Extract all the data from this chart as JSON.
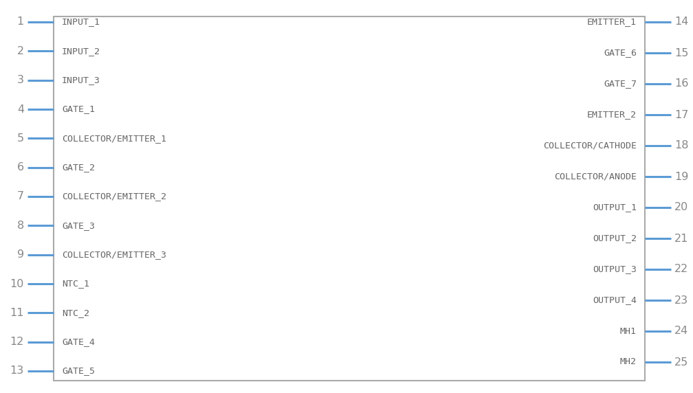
{
  "bg_color": "#ffffff",
  "box_color": "#aaaaaa",
  "pin_line_color": "#5b9bd5",
  "text_color": "#666666",
  "pin_num_color": "#888888",
  "left_pins": [
    {
      "num": 1,
      "label": "INPUT_1"
    },
    {
      "num": 2,
      "label": "INPUT_2"
    },
    {
      "num": 3,
      "label": "INPUT_3"
    },
    {
      "num": 4,
      "label": "GATE_1"
    },
    {
      "num": 5,
      "label": "COLLECTOR/EMITTER_1"
    },
    {
      "num": 6,
      "label": "GATE_2"
    },
    {
      "num": 7,
      "label": "COLLECTOR/EMITTER_2"
    },
    {
      "num": 8,
      "label": "GATE_3"
    },
    {
      "num": 9,
      "label": "COLLECTOR/EMITTER_3"
    },
    {
      "num": 10,
      "label": "NTC_1"
    },
    {
      "num": 11,
      "label": "NTC_2"
    },
    {
      "num": 12,
      "label": "GATE_4"
    },
    {
      "num": 13,
      "label": "GATE_5"
    }
  ],
  "right_pins": [
    {
      "num": 14,
      "label": "EMITTER_1"
    },
    {
      "num": 15,
      "label": "GATE_6"
    },
    {
      "num": 16,
      "label": "GATE_7"
    },
    {
      "num": 17,
      "label": "EMITTER_2"
    },
    {
      "num": 18,
      "label": "COLLECTOR/CATHODE"
    },
    {
      "num": 19,
      "label": "COLLECTOR/ANODE"
    },
    {
      "num": 20,
      "label": "OUTPUT_1"
    },
    {
      "num": 21,
      "label": "OUTPUT_2"
    },
    {
      "num": 22,
      "label": "OUTPUT_3"
    },
    {
      "num": 23,
      "label": "OUTPUT_4"
    },
    {
      "num": 24,
      "label": "MH1"
    },
    {
      "num": 25,
      "label": "MH2"
    }
  ],
  "font_size": 9.5,
  "pin_num_font_size": 11.5
}
